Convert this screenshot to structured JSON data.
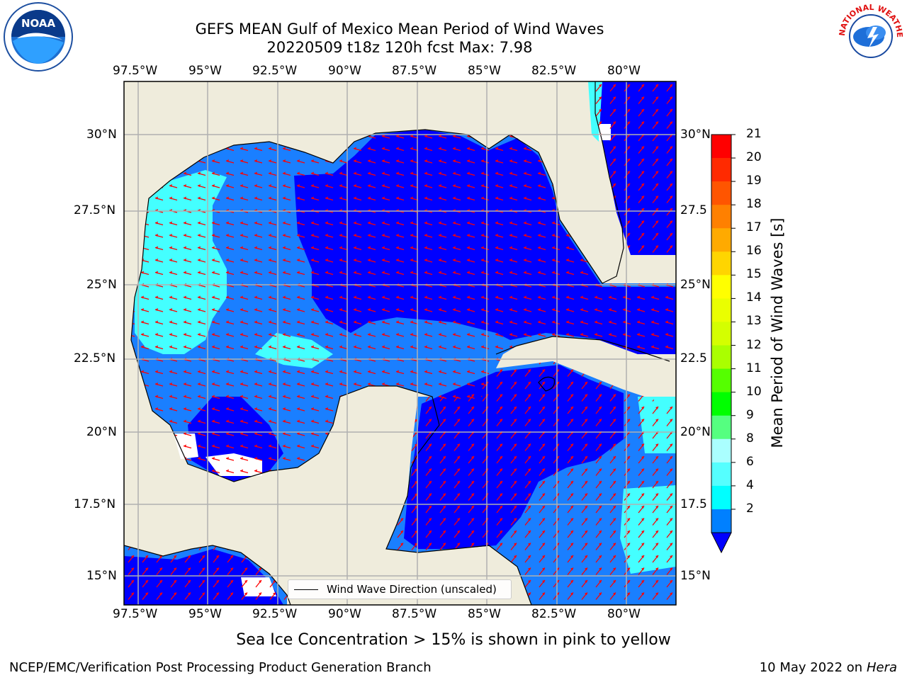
{
  "title_line1": "GEFS MEAN Gulf of Mexico Mean Period of Wind Waves",
  "title_line2": "20220509 t18z 120h fcst   Max: 7.98",
  "lon_labels": [
    "97.5°W",
    "95°W",
    "92.5°W",
    "90°W",
    "87.5°W",
    "85°W",
    "82.5°W",
    "80°W"
  ],
  "lat_labels": [
    "30°N",
    "27.5°N",
    "25°N",
    "22.5°N",
    "20°N",
    "17.5°N",
    "15°N"
  ],
  "lat_labels_right": [
    "30°N",
    "27.5",
    "25°N",
    "22.5",
    "20°N",
    "17.5",
    "15°N"
  ],
  "legend_label": "Wind Wave Direction (unscaled)",
  "colorbar": {
    "title": "Mean Period of Wind Waves [s]",
    "ticks": [
      "21",
      "20",
      "19",
      "18",
      "17",
      "16",
      "15",
      "14",
      "13",
      "12",
      "11",
      "10",
      "9",
      "8",
      "6",
      "4",
      "2"
    ],
    "colors": [
      "#ff0000",
      "#ff2a00",
      "#ff5500",
      "#ff8000",
      "#ffaa00",
      "#ffd500",
      "#ffff00",
      "#eaff00",
      "#d4ff00",
      "#aaff00",
      "#55ff00",
      "#00ff00",
      "#55ff80",
      "#aaffff",
      "#55ffff",
      "#00ffff",
      "#0080ff"
    ],
    "extend_color": "#0000ff"
  },
  "map_colors": {
    "land": "#efecdc",
    "dark_blue": "#0000ff",
    "mid_blue": "#1a7fff",
    "cyan": "#44ffff",
    "arrow": "#ff0000"
  },
  "note": "Sea Ice Concentration > 15% is shown in pink to yellow",
  "footer_left": "NCEP/EMC/Verification Post Processing Product Generation Branch",
  "footer_date": "10 May 2022 on",
  "footer_host": "Hera",
  "logos": {
    "left": "NOAA",
    "right": "NATIONAL WEATHER SERVICE"
  }
}
